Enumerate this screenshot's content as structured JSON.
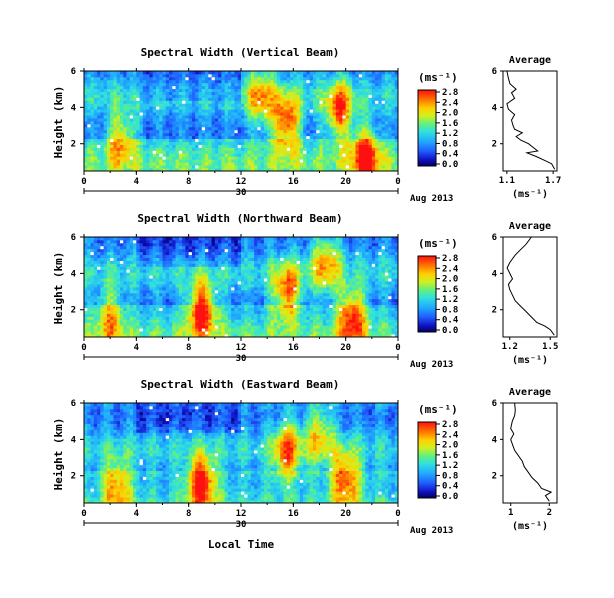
{
  "x_label": "Local Time",
  "date_label": "Aug 2013",
  "date_tick": "30",
  "unit_label": "(ms⁻¹)",
  "chart_data": [
    {
      "type": "heatmap",
      "title": "Spectral Width (Vertical Beam)",
      "ylabel": "Height (km)",
      "xlabel": "Local Time",
      "x_ticks": [
        "0",
        "4",
        "8",
        "12",
        "16",
        "20",
        "0"
      ],
      "y_ticks": [
        "2",
        "4",
        "6"
      ],
      "xlim": [
        0,
        24
      ],
      "ylim": [
        0.5,
        6
      ],
      "colorbar": {
        "label": "(ms⁻¹)",
        "ticks": [
          "0.0",
          "0.4",
          "0.8",
          "1.2",
          "1.6",
          "2.0",
          "2.4",
          "2.8"
        ],
        "range": [
          0,
          2.8
        ]
      },
      "hot_spots": [
        {
          "x": 15.5,
          "y": 3.2,
          "v": 2.7
        },
        {
          "x": 19.5,
          "y": 3.8,
          "v": 2.6
        },
        {
          "x": 21.5,
          "y": 1.4,
          "v": 2.6
        },
        {
          "x": 13.5,
          "y": 4.6,
          "v": 2.2
        },
        {
          "x": 2.8,
          "y": 2.4,
          "v": 2.1
        }
      ],
      "average": {
        "title": "Average",
        "xlabel": "(ms⁻¹)",
        "x_ticks": [
          "1.1",
          "1.7"
        ],
        "xlim": [
          1.05,
          1.75
        ],
        "ylim": [
          0.5,
          6
        ],
        "y_ticks": [
          "2",
          "4",
          "6"
        ],
        "profile": [
          [
            0.6,
            1.72
          ],
          [
            0.9,
            1.68
          ],
          [
            1.1,
            1.58
          ],
          [
            1.3,
            1.48
          ],
          [
            1.5,
            1.36
          ],
          [
            1.6,
            1.5
          ],
          [
            1.8,
            1.44
          ],
          [
            2.0,
            1.38
          ],
          [
            2.2,
            1.28
          ],
          [
            2.4,
            1.22
          ],
          [
            2.6,
            1.3
          ],
          [
            2.8,
            1.2
          ],
          [
            3.0,
            1.18
          ],
          [
            3.3,
            1.16
          ],
          [
            3.6,
            1.2
          ],
          [
            3.9,
            1.12
          ],
          [
            4.2,
            1.1
          ],
          [
            4.5,
            1.2
          ],
          [
            4.8,
            1.16
          ],
          [
            5.0,
            1.22
          ],
          [
            5.3,
            1.14
          ],
          [
            5.6,
            1.12
          ],
          [
            6.0,
            1.1
          ]
        ]
      }
    },
    {
      "type": "heatmap",
      "title": "Spectral Width (Northward Beam)",
      "ylabel": "Height (km)",
      "xlabel": "Local Time",
      "x_ticks": [
        "0",
        "4",
        "8",
        "12",
        "16",
        "20",
        "0"
      ],
      "y_ticks": [
        "2",
        "4",
        "6"
      ],
      "xlim": [
        0,
        24
      ],
      "ylim": [
        0.5,
        6
      ],
      "colorbar": {
        "label": "(ms⁻¹)",
        "ticks": [
          "0.0",
          "0.4",
          "0.8",
          "1.2",
          "1.6",
          "2.0",
          "2.4",
          "2.8"
        ],
        "range": [
          0,
          2.8
        ]
      },
      "hot_spots": [
        {
          "x": 9.0,
          "y": 2.0,
          "v": 2.8
        },
        {
          "x": 15.5,
          "y": 3.0,
          "v": 2.5
        },
        {
          "x": 20.5,
          "y": 1.6,
          "v": 2.6
        },
        {
          "x": 2.0,
          "y": 1.6,
          "v": 2.0
        },
        {
          "x": 18.5,
          "y": 4.6,
          "v": 2.2
        }
      ],
      "average": {
        "title": "Average",
        "xlabel": "(ms⁻¹)",
        "x_ticks": [
          "1.2",
          "1.5"
        ],
        "xlim": [
          1.15,
          1.55
        ],
        "ylim": [
          0.5,
          6
        ],
        "y_ticks": [
          "2",
          "4",
          "6"
        ],
        "profile": [
          [
            0.6,
            1.53
          ],
          [
            0.9,
            1.5
          ],
          [
            1.1,
            1.46
          ],
          [
            1.3,
            1.4
          ],
          [
            1.6,
            1.36
          ],
          [
            1.9,
            1.32
          ],
          [
            2.2,
            1.28
          ],
          [
            2.5,
            1.24
          ],
          [
            2.8,
            1.22
          ],
          [
            3.1,
            1.2
          ],
          [
            3.4,
            1.19
          ],
          [
            3.7,
            1.22
          ],
          [
            4.0,
            1.2
          ],
          [
            4.3,
            1.18
          ],
          [
            4.6,
            1.2
          ],
          [
            5.0,
            1.24
          ],
          [
            5.3,
            1.28
          ],
          [
            5.6,
            1.32
          ],
          [
            6.0,
            1.36
          ]
        ]
      }
    },
    {
      "type": "heatmap",
      "title": "Spectral Width (Eastward Beam)",
      "ylabel": "Height (km)",
      "xlabel": "Local Time",
      "x_ticks": [
        "0",
        "4",
        "8",
        "12",
        "16",
        "20",
        "0"
      ],
      "y_ticks": [
        "2",
        "4",
        "6"
      ],
      "xlim": [
        0,
        24
      ],
      "ylim": [
        0.5,
        6
      ],
      "colorbar": {
        "label": "(ms⁻¹)",
        "ticks": [
          "0.0",
          "0.4",
          "0.8",
          "1.2",
          "1.6",
          "2.0",
          "2.4",
          "2.8"
        ],
        "range": [
          0,
          2.8
        ]
      },
      "hot_spots": [
        {
          "x": 9.0,
          "y": 1.6,
          "v": 2.8
        },
        {
          "x": 15.5,
          "y": 3.4,
          "v": 2.4
        },
        {
          "x": 20.0,
          "y": 1.8,
          "v": 2.5
        },
        {
          "x": 2.5,
          "y": 1.4,
          "v": 2.2
        },
        {
          "x": 18.0,
          "y": 4.4,
          "v": 2.0
        }
      ],
      "average": {
        "title": "Average",
        "xlabel": "(ms⁻¹)",
        "x_ticks": [
          "1",
          "2"
        ],
        "xlim": [
          0.8,
          2.2
        ],
        "ylim": [
          0.5,
          6
        ],
        "y_ticks": [
          "2",
          "4",
          "6"
        ],
        "profile": [
          [
            0.6,
            2.0
          ],
          [
            0.9,
            1.9
          ],
          [
            1.1,
            2.05
          ],
          [
            1.3,
            1.8
          ],
          [
            1.6,
            1.7
          ],
          [
            1.9,
            1.55
          ],
          [
            2.2,
            1.45
          ],
          [
            2.5,
            1.35
          ],
          [
            2.8,
            1.3
          ],
          [
            3.1,
            1.2
          ],
          [
            3.4,
            1.1
          ],
          [
            3.7,
            1.05
          ],
          [
            4.0,
            1.0
          ],
          [
            4.3,
            1.08
          ],
          [
            4.6,
            1.0
          ],
          [
            5.0,
            1.04
          ],
          [
            5.3,
            1.1
          ],
          [
            5.6,
            1.12
          ],
          [
            6.0,
            1.1
          ]
        ]
      }
    }
  ]
}
